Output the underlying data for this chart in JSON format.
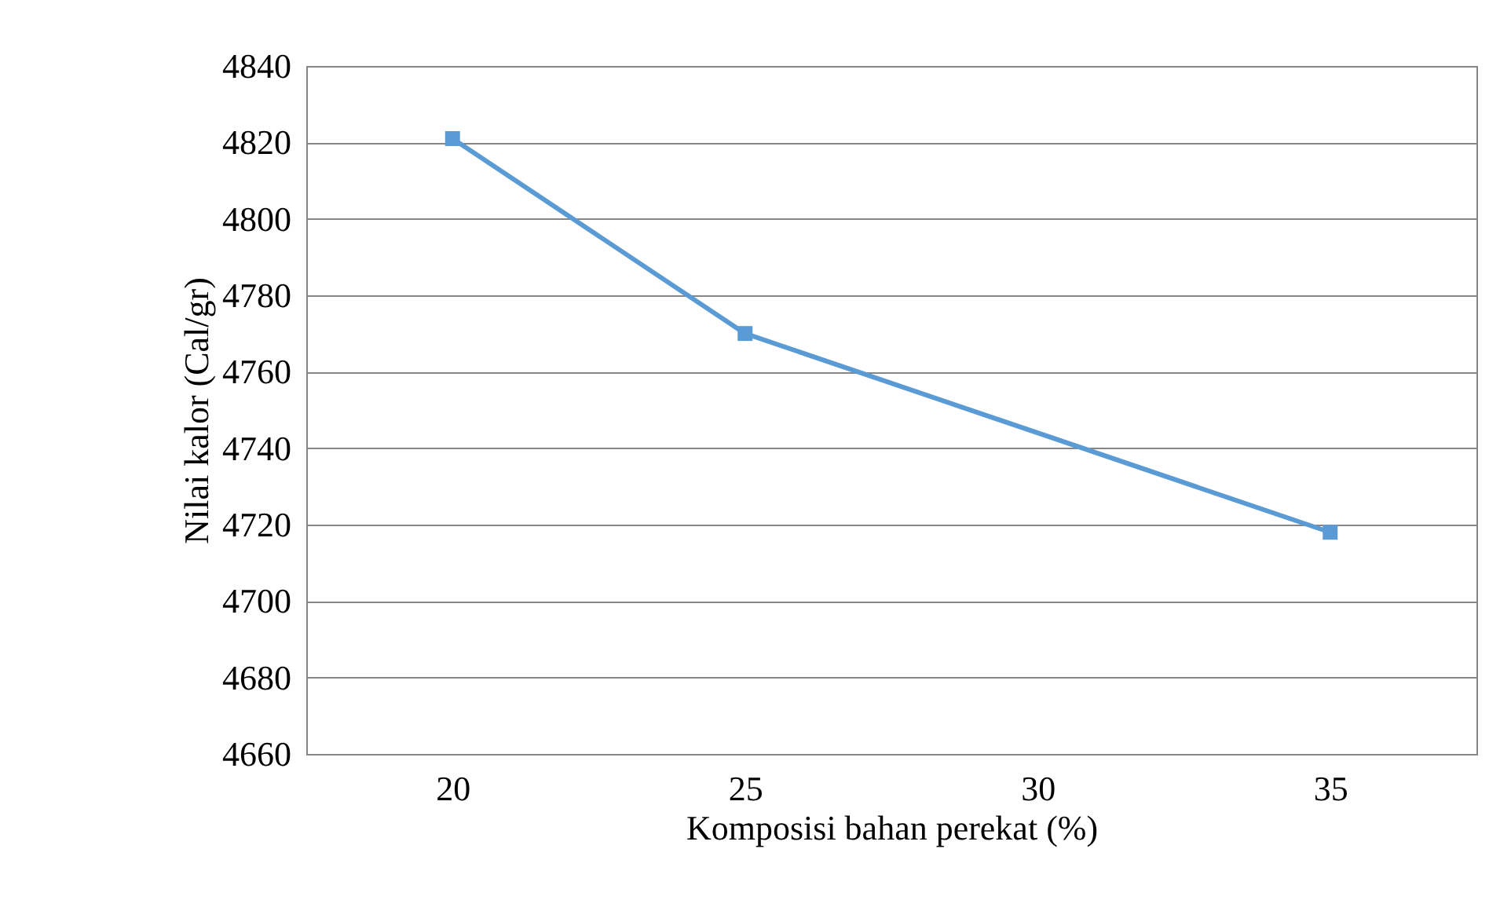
{
  "chart_data": {
    "type": "line",
    "xlabel": "Komposisi bahan perekat (%)",
    "ylabel": "Nilai kalor (Cal/gr)",
    "x": [
      20,
      25,
      35
    ],
    "series": [
      {
        "color": "#5b9bd5",
        "values": [
          4821,
          4770,
          4718
        ]
      }
    ],
    "xlim": [
      17.5,
      37.5
    ],
    "xticks": [
      20,
      25,
      30,
      35
    ],
    "ylim": [
      4660,
      4840
    ],
    "yticks": [
      4660,
      4680,
      4700,
      4720,
      4740,
      4760,
      4780,
      4800,
      4820,
      4840
    ],
    "grid": "y",
    "marker": "square",
    "line_style": "solid"
  }
}
